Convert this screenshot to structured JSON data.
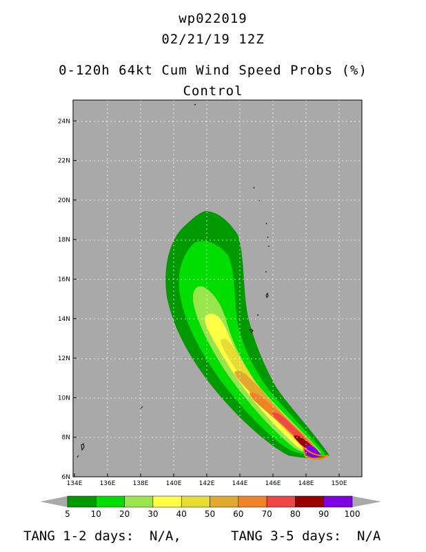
{
  "header": {
    "storm_id": "wp022019",
    "date": "02/21/19 12Z",
    "product": "0-120h 64kt Cum Wind Speed Probs (%)",
    "member": "Control"
  },
  "map": {
    "lon_labels": [
      "134E",
      "136E",
      "138E",
      "140E",
      "142E",
      "144E",
      "146E",
      "148E",
      "150E"
    ],
    "lat_labels": [
      "6N",
      "8N",
      "10N",
      "12N",
      "14N",
      "16N",
      "18N",
      "20N",
      "22N",
      "24N"
    ],
    "lon_range": [
      134,
      151
    ],
    "lat_range": [
      6,
      25
    ],
    "background_color": "#a9a9a9"
  },
  "colorbar": {
    "levels": [
      "5",
      "10",
      "20",
      "30",
      "40",
      "50",
      "60",
      "70",
      "80",
      "90",
      "100"
    ],
    "colors": [
      "#009900",
      "#00dd00",
      "#99e54c",
      "#ffff44",
      "#e6dc32",
      "#e1aa2e",
      "#f08228",
      "#f04646",
      "#990000",
      "#8000e6"
    ]
  },
  "footer": {
    "tang_12": "TANG 1-2 days:  N/A,",
    "tang_35": "TANG 3-5 days:  N/A"
  }
}
